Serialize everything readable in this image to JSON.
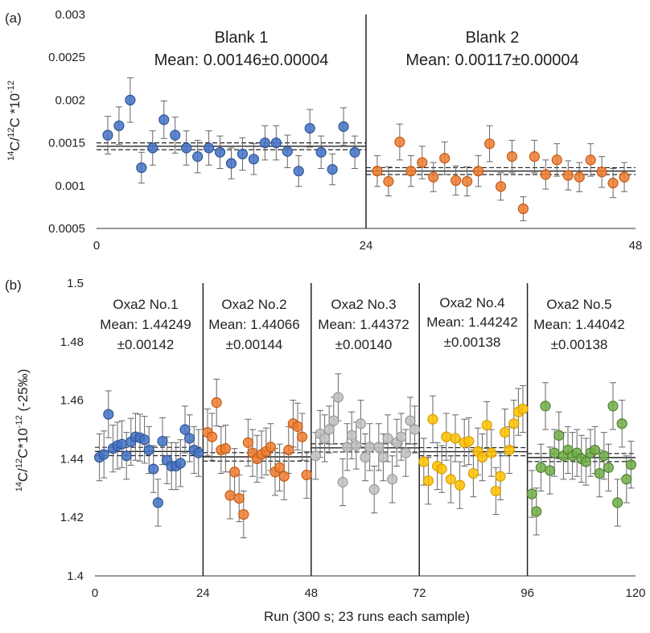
{
  "chart_data": [
    {
      "type": "scatter",
      "panel_label": "(a)",
      "ylabel": "14C/12C *10-12",
      "ylabel_parts": {
        "sup1": "14",
        "a": "C/",
        "sup2": "12",
        "b": "C *10",
        "sup3": "-12"
      },
      "xlim": [
        0,
        48
      ],
      "ylim": [
        0.0005,
        0.003
      ],
      "x_ticks": [
        "0",
        "24",
        "48"
      ],
      "x_tick_values": [
        0,
        24,
        48
      ],
      "y_ticks": [
        "0.0005",
        "0.001",
        "0.0015",
        "0.002",
        "0.0025",
        "0.003"
      ],
      "y_tick_values": [
        0.0005,
        0.001,
        0.0015,
        0.002,
        0.0025,
        0.003
      ],
      "dividers": [
        24
      ],
      "segments": [
        {
          "name": "Blank 1",
          "mean_text": "Mean: 0.00146±0.00004",
          "mean": 0.00146,
          "sd": 4e-05,
          "x_range": [
            0,
            24
          ],
          "color": "#4472C4",
          "stroke": "#2F5597",
          "x": [
            1,
            2,
            3,
            4,
            5,
            6,
            7,
            8,
            9,
            10,
            11,
            12,
            13,
            14,
            15,
            16,
            17,
            18,
            19,
            20,
            21,
            22,
            23
          ],
          "y": [
            0.00159,
            0.0017,
            0.002,
            0.00121,
            0.00144,
            0.00177,
            0.00159,
            0.00144,
            0.00134,
            0.00144,
            0.00139,
            0.00126,
            0.00137,
            0.00131,
            0.0015,
            0.0015,
            0.0014,
            0.00117,
            0.00167,
            0.00139,
            0.00119,
            0.00169,
            0.00139
          ],
          "err": [
            0.00022,
            0.00022,
            0.00026,
            0.00018,
            0.0002,
            0.00022,
            0.00021,
            0.0002,
            0.00019,
            0.0002,
            0.00019,
            0.00018,
            0.00019,
            0.00018,
            0.0002,
            0.0002,
            0.00019,
            0.00018,
            0.00022,
            0.00019,
            0.00018,
            0.00022,
            0.00019
          ]
        },
        {
          "name": "Blank 2",
          "mean_text": "Mean: 0.00117±0.00004",
          "mean": 0.00117,
          "sd": 4e-05,
          "x_range": [
            24,
            48
          ],
          "color": "#ED7D31",
          "stroke": "#C55A11",
          "x": [
            25,
            26,
            27,
            28,
            29,
            30,
            31,
            32,
            33,
            34,
            35,
            36,
            37,
            38,
            39,
            40,
            41,
            42,
            43,
            44,
            45,
            46,
            47
          ],
          "y": [
            0.00117,
            0.00105,
            0.00151,
            0.00117,
            0.00127,
            0.0011,
            0.00132,
            0.00106,
            0.00105,
            0.00117,
            0.00149,
            0.00099,
            0.00134,
            0.00073,
            0.00134,
            0.00113,
            0.0013,
            0.00112,
            0.0011,
            0.0013,
            0.00116,
            0.00103,
            0.0011
          ],
          "err": [
            0.00018,
            0.00017,
            0.00021,
            0.00018,
            0.00019,
            0.00017,
            0.00019,
            0.00017,
            0.00017,
            0.00018,
            0.00021,
            0.00016,
            0.00019,
            0.00014,
            0.00019,
            0.00017,
            0.00019,
            0.00017,
            0.00017,
            0.00019,
            0.00018,
            0.00017,
            0.00017
          ]
        }
      ]
    },
    {
      "type": "scatter",
      "panel_label": "(b)",
      "ylabel": "14C/12C*10-12 (-25‰)",
      "ylabel_parts": {
        "sup1": "14",
        "a": "C/",
        "sup2": "12",
        "b": "C*10",
        "sup3": "-12",
        "c": " (-25‰)"
      },
      "xlabel": "Run (300 s; 23 runs each sample)",
      "xlim": [
        0,
        120
      ],
      "ylim": [
        1.4,
        1.5
      ],
      "x_ticks": [
        "0",
        "24",
        "48",
        "72",
        "96",
        "120"
      ],
      "x_tick_values": [
        0,
        24,
        48,
        72,
        96,
        120
      ],
      "y_ticks": [
        "1.4",
        "1.42",
        "1.44",
        "1.46",
        "1.48",
        "1.5"
      ],
      "y_tick_values": [
        1.4,
        1.42,
        1.44,
        1.46,
        1.48,
        1.5
      ],
      "dividers": [
        24,
        48,
        72,
        96
      ],
      "segments": [
        {
          "name": "Oxa2 No.1",
          "mean_line1": "Mean: 1.44249",
          "mean_line2": "±0.00142",
          "mean": 1.44249,
          "sd": 0.00142,
          "x_range": [
            0,
            24
          ],
          "color": "#4472C4",
          "stroke": "#2F5597",
          "x": [
            1,
            2,
            3,
            4,
            5,
            6,
            7,
            8,
            9,
            10,
            11,
            12,
            13,
            14,
            15,
            16,
            17,
            18,
            19,
            20,
            21,
            22,
            23
          ],
          "y": [
            1.4405,
            1.4415,
            1.4552,
            1.4435,
            1.4445,
            1.445,
            1.441,
            1.4458,
            1.4475,
            1.4472,
            1.4465,
            1.443,
            1.4365,
            1.425,
            1.446,
            1.4395,
            1.4375,
            1.4375,
            1.4385,
            1.45,
            1.447,
            1.443,
            1.442
          ],
          "err": [
            0.008,
            0.008,
            0.008,
            0.008,
            0.008,
            0.008,
            0.008,
            0.008,
            0.008,
            0.008,
            0.008,
            0.008,
            0.008,
            0.008,
            0.008,
            0.008,
            0.008,
            0.008,
            0.008,
            0.008,
            0.008,
            0.008,
            0.008
          ]
        },
        {
          "name": "Oxa2 No.2",
          "mean_line1": "Mean: 1.44066",
          "mean_line2": "±0.00144",
          "mean": 1.44066,
          "sd": 0.00144,
          "x_range": [
            24,
            48
          ],
          "color": "#ED7D31",
          "stroke": "#C55A11",
          "x": [
            25,
            26,
            27,
            28,
            29,
            30,
            31,
            32,
            33,
            34,
            35,
            36,
            37,
            38,
            39,
            40,
            41,
            42,
            43,
            44,
            45,
            46,
            47
          ],
          "y": [
            1.449,
            1.4475,
            1.4592,
            1.443,
            1.4435,
            1.4275,
            1.4355,
            1.4265,
            1.421,
            1.4455,
            1.442,
            1.44,
            1.4415,
            1.4425,
            1.444,
            1.4355,
            1.437,
            1.434,
            1.443,
            1.452,
            1.451,
            1.4475,
            1.4345
          ],
          "err": [
            0.008,
            0.008,
            0.008,
            0.008,
            0.008,
            0.008,
            0.008,
            0.008,
            0.008,
            0.008,
            0.008,
            0.008,
            0.008,
            0.008,
            0.008,
            0.008,
            0.008,
            0.008,
            0.008,
            0.008,
            0.008,
            0.008,
            0.008
          ]
        },
        {
          "name": "Oxa2 No.3",
          "mean_line1": "Mean: 1.44372",
          "mean_line2": "±0.00140",
          "mean": 1.44372,
          "sd": 0.0014,
          "x_range": [
            48,
            72
          ],
          "color": "#BFBFBF",
          "stroke": "#9A9A9A",
          "x": [
            49,
            50,
            51,
            52,
            53,
            54,
            55,
            56,
            57,
            58,
            59,
            60,
            61,
            62,
            63,
            64,
            65,
            66,
            67,
            68,
            69,
            70,
            71
          ],
          "y": [
            1.441,
            1.4485,
            1.447,
            1.45,
            1.453,
            1.461,
            1.432,
            1.444,
            1.448,
            1.4445,
            1.452,
            1.4405,
            1.444,
            1.4295,
            1.444,
            1.4405,
            1.447,
            1.433,
            1.4455,
            1.4475,
            1.442,
            1.453,
            1.45
          ],
          "err": [
            0.008,
            0.008,
            0.008,
            0.008,
            0.008,
            0.008,
            0.008,
            0.008,
            0.008,
            0.008,
            0.008,
            0.008,
            0.008,
            0.008,
            0.008,
            0.008,
            0.008,
            0.008,
            0.008,
            0.008,
            0.008,
            0.008,
            0.008
          ]
        },
        {
          "name": "Oxa2 No.4",
          "mean_line1": "Mean: 1.44242",
          "mean_line2": "±0.00138",
          "mean": 1.44242,
          "sd": 0.00138,
          "x_range": [
            72,
            96
          ],
          "color": "#FFC000",
          "stroke": "#D4A000",
          "x": [
            73,
            74,
            75,
            76,
            77,
            78,
            79,
            80,
            81,
            82,
            83,
            84,
            85,
            86,
            87,
            88,
            89,
            90,
            91,
            92,
            93,
            94,
            95
          ],
          "y": [
            1.439,
            1.4325,
            1.4535,
            1.4375,
            1.4365,
            1.4475,
            1.433,
            1.447,
            1.431,
            1.4455,
            1.446,
            1.435,
            1.4425,
            1.4405,
            1.4515,
            1.442,
            1.429,
            1.434,
            1.449,
            1.443,
            1.452,
            1.456,
            1.457
          ],
          "err": [
            0.008,
            0.008,
            0.008,
            0.008,
            0.008,
            0.008,
            0.008,
            0.008,
            0.008,
            0.008,
            0.008,
            0.008,
            0.008,
            0.008,
            0.008,
            0.008,
            0.008,
            0.008,
            0.008,
            0.008,
            0.008,
            0.008,
            0.008
          ]
        },
        {
          "name": "Oxa2 No.5",
          "mean_line1": "Mean: 1.44042",
          "mean_line2": "±0.00138",
          "mean": 1.44042,
          "sd": 0.00138,
          "x_range": [
            96,
            120
          ],
          "color": "#70AD47",
          "stroke": "#548235",
          "x": [
            97,
            98,
            99,
            100,
            101,
            102,
            103,
            104,
            105,
            106,
            107,
            108,
            109,
            110,
            111,
            112,
            113,
            114,
            115,
            116,
            117,
            118,
            119
          ],
          "y": [
            1.428,
            1.422,
            1.437,
            1.458,
            1.436,
            1.442,
            1.448,
            1.441,
            1.443,
            1.441,
            1.442,
            1.44,
            1.439,
            1.442,
            1.443,
            1.435,
            1.441,
            1.437,
            1.458,
            1.425,
            1.452,
            1.433,
            1.438
          ],
          "err": [
            0.008,
            0.008,
            0.008,
            0.008,
            0.008,
            0.008,
            0.008,
            0.008,
            0.008,
            0.008,
            0.008,
            0.008,
            0.008,
            0.008,
            0.008,
            0.008,
            0.008,
            0.008,
            0.008,
            0.008,
            0.008,
            0.008,
            0.008
          ]
        }
      ]
    }
  ]
}
